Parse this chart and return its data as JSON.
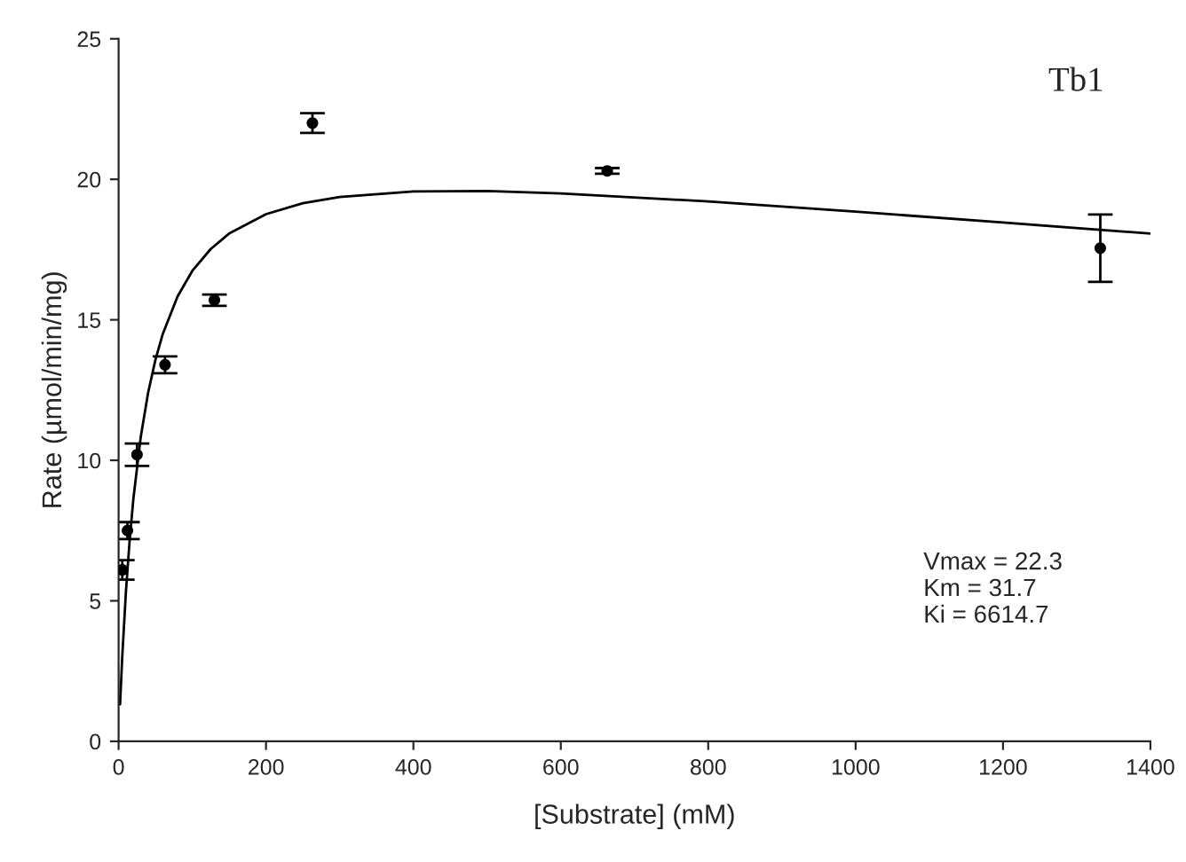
{
  "chart_data": {
    "type": "scatter",
    "xlabel": "[Substrate] (mM)",
    "ylabel": "Rate (µmol/min/mg)",
    "xlim": [
      0,
      1400
    ],
    "xticks": [
      0,
      200,
      400,
      600,
      800,
      1000,
      1200,
      1400
    ],
    "ylim": [
      0,
      25
    ],
    "yticks": [
      0,
      5,
      10,
      15,
      20,
      25
    ],
    "grid": false,
    "legend": false,
    "series": [
      {
        "marker": "circle",
        "color": "#000000",
        "x": [
          5,
          12,
          25,
          63,
          130,
          263,
          663,
          1332
        ],
        "values": [
          6.1,
          7.5,
          10.2,
          13.4,
          15.7,
          22.0,
          20.3,
          17.55
        ],
        "errors": [
          0.35,
          0.3,
          0.4,
          0.3,
          0.2,
          0.35,
          0.1,
          1.2
        ]
      },
      {
        "type": "line",
        "color": "#000000",
        "line_style": "solid",
        "x": [
          2,
          5,
          10,
          15,
          20,
          30,
          40,
          50,
          60,
          80,
          100,
          125,
          150,
          200,
          250,
          300,
          400,
          500,
          600,
          800,
          1000,
          1200,
          1400
        ],
        "values": [
          1.32,
          3.04,
          5.35,
          7.16,
          8.62,
          10.82,
          12.4,
          13.58,
          14.5,
          15.83,
          16.74,
          17.52,
          18.07,
          18.76,
          19.15,
          19.37,
          19.57,
          19.58,
          19.5,
          19.21,
          18.85,
          18.46,
          18.07
        ]
      }
    ],
    "annotations": [
      "Tb1",
      "Vmax = 22.3\nKm = 31.7\nKi = 6614.7"
    ]
  }
}
